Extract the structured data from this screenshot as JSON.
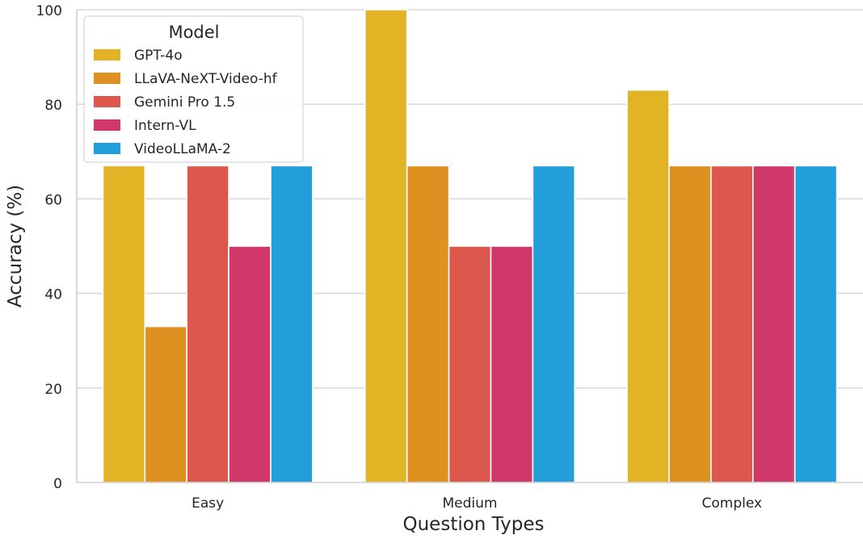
{
  "chart_data": {
    "type": "bar",
    "xlabel": "Question Types",
    "ylabel": "Accuracy (%)",
    "categories": [
      "Easy",
      "Medium",
      "Complex"
    ],
    "ylim": [
      0,
      100
    ],
    "yticks": [
      0,
      20,
      40,
      60,
      80,
      100
    ],
    "grid": "horizontal",
    "legend": {
      "title": "Model",
      "placement": "top-left"
    },
    "series": [
      {
        "name": "GPT-4o",
        "color": "#E1B325",
        "values": [
          67,
          100,
          83
        ]
      },
      {
        "name": "LLaVA-NeXT-Video-hf",
        "color": "#DE9020",
        "values": [
          33,
          67,
          67
        ]
      },
      {
        "name": "Gemini Pro 1.5",
        "color": "#DC584C",
        "values": [
          67,
          50,
          67
        ]
      },
      {
        "name": "Intern-VL",
        "color": "#D0386A",
        "values": [
          50,
          50,
          67
        ]
      },
      {
        "name": "VideoLLaMA-2",
        "color": "#229FDA",
        "values": [
          67,
          67,
          67
        ]
      }
    ]
  }
}
